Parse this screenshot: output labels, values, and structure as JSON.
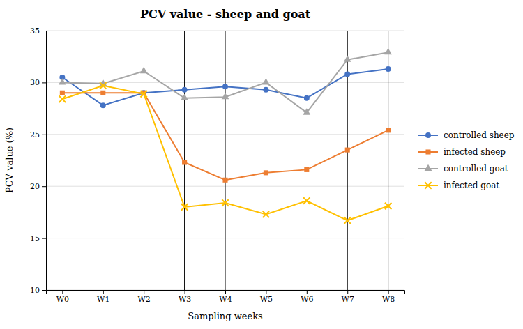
{
  "chart_data": {
    "type": "line",
    "title": "PCV value - sheep and goat",
    "x_label": "Sampling weeks",
    "y_label": "PCV value (%)",
    "categories": [
      "W0",
      "W1",
      "W2",
      "W3",
      "W4",
      "W5",
      "W6",
      "W7",
      "W8"
    ],
    "series": [
      {
        "name": "controlled sheep",
        "color": "#4472C4",
        "marker": "circle",
        "values": [
          30.5,
          27.8,
          29.0,
          29.3,
          29.6,
          29.3,
          28.5,
          30.8,
          31.3
        ]
      },
      {
        "name": "infected sheep",
        "color": "#ED7D31",
        "marker": "square",
        "values": [
          29.0,
          29.0,
          29.0,
          22.3,
          20.6,
          21.3,
          21.6,
          23.5,
          25.4
        ]
      },
      {
        "name": "controlled goat",
        "color": "#A5A5A5",
        "marker": "triangle",
        "values": [
          30.0,
          29.9,
          31.1,
          28.5,
          28.6,
          30.0,
          27.1,
          32.2,
          32.9
        ]
      },
      {
        "name": "infected goat",
        "color": "#FFC000",
        "marker": "x",
        "values": [
          28.4,
          29.7,
          28.9,
          18.0,
          18.4,
          17.3,
          18.6,
          16.7,
          18.1
        ]
      }
    ],
    "ylim": [
      10,
      35
    ],
    "yticks": [
      10,
      15,
      20,
      25,
      30,
      35
    ],
    "vlines": [
      "W3",
      "W4",
      "W7",
      "W8"
    ],
    "grid": true,
    "legend": "right"
  }
}
